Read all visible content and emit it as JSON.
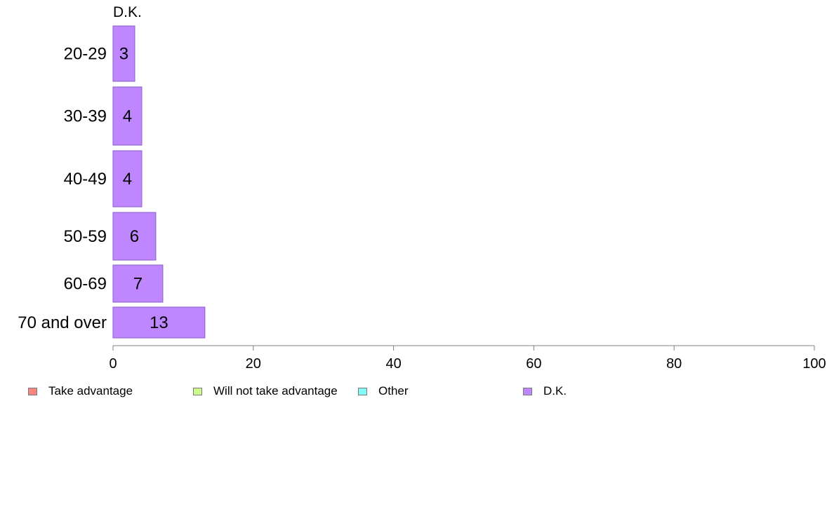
{
  "chart_data": {
    "type": "bar",
    "orientation": "horizontal",
    "title": "D.K.",
    "categories": [
      "20-29",
      "30-39",
      "40-49",
      "50-59",
      "60-69",
      "70 and over"
    ],
    "series": [
      {
        "name": "D.K.",
        "values": [
          3,
          4,
          4,
          6,
          7,
          13
        ],
        "color": "#bf87ff"
      }
    ],
    "data_labels": [
      "3",
      "4",
      "4",
      "6",
      "7",
      "13"
    ],
    "xlim": [
      0,
      100
    ],
    "x_ticks": [
      0,
      20,
      40,
      60,
      80,
      100
    ],
    "grid": false,
    "legend": {
      "placement": "bottom",
      "entries": [
        {
          "label": "Take advantage",
          "color": "#f8867f"
        },
        {
          "label": "Will not take advantage",
          "color": "#cdfa8c"
        },
        {
          "label": "Other",
          "color": "#82fafa"
        },
        {
          "label": "D.K.",
          "color": "#bf87ff"
        }
      ]
    }
  }
}
